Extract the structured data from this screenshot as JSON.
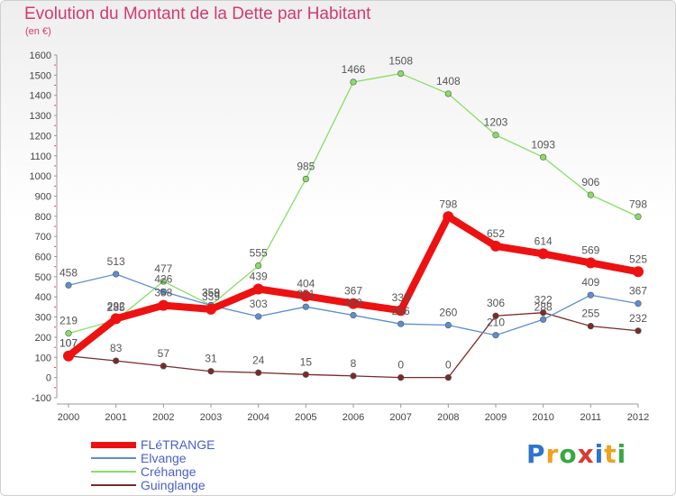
{
  "chart": {
    "title": "Evolution du Montant de la Dette par Habitant",
    "subtitle": "(en €)"
  },
  "chart_data": {
    "type": "line",
    "x": [
      "2000",
      "2001",
      "2002",
      "2003",
      "2004",
      "2005",
      "2006",
      "2007",
      "2008",
      "2009",
      "2010",
      "2011",
      "2012"
    ],
    "ylim": [
      -100,
      1600
    ],
    "yticks": [
      -100,
      0,
      100,
      200,
      300,
      400,
      500,
      600,
      700,
      800,
      900,
      1000,
      1100,
      1200,
      1300,
      1400,
      1500,
      1600
    ],
    "grid": false,
    "legend": "bottom-left",
    "series": [
      {
        "name": "FLéTRANGE",
        "color": "#ee1111",
        "values": [
          107,
          292,
          358,
          339,
          439,
          404,
          367,
          333,
          798,
          652,
          614,
          569,
          525
        ]
      },
      {
        "name": "Elvange",
        "color": "#5b8fd0",
        "values": [
          458,
          513,
          426,
          358,
          303,
          351,
          309,
          266,
          260,
          210,
          288,
          409,
          367
        ]
      },
      {
        "name": "Créhange",
        "color": "#88dd66",
        "values": [
          219,
          285,
          477,
          359,
          555,
          985,
          1466,
          1508,
          1408,
          1203,
          1093,
          906,
          798
        ]
      },
      {
        "name": "Guinglange",
        "color": "#7a2a2a",
        "values": [
          107,
          83,
          57,
          31,
          24,
          15,
          8,
          0,
          0,
          306,
          322,
          255,
          232
        ]
      }
    ]
  },
  "logo": {
    "letters": [
      "P",
      "r",
      "o",
      "x",
      "i",
      "t",
      "i"
    ],
    "colors": [
      "#2e74c9",
      "#f0a21e",
      "#3aa843",
      "#d93a30",
      "#2e74c9",
      "#f0a21e",
      "#3aa843"
    ]
  }
}
